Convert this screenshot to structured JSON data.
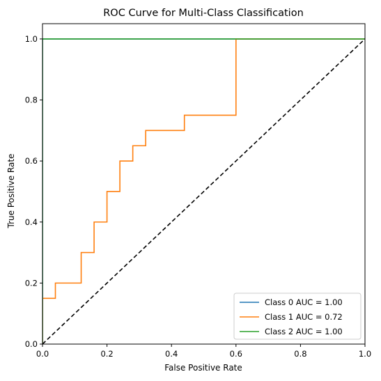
{
  "chart_data": {
    "type": "line",
    "title": "ROC Curve for Multi-Class Classification",
    "xlabel": "False Positive Rate",
    "ylabel": "True Positive Rate",
    "xlim": [
      0.0,
      1.0
    ],
    "ylim": [
      0.0,
      1.05
    ],
    "xticks": [
      "0.0",
      "0.2",
      "0.4",
      "0.6",
      "0.8",
      "1.0"
    ],
    "yticks": [
      "0.0",
      "0.2",
      "0.4",
      "0.6",
      "0.8",
      "1.0"
    ],
    "grid": false,
    "legend_position": "lower-right",
    "series": [
      {
        "name": "Class 0 AUC = 1.00",
        "color": "#1f77b4",
        "x": [
          0.0,
          0.0,
          1.0
        ],
        "y": [
          0.0,
          1.0,
          1.0
        ]
      },
      {
        "name": "Class 1 AUC = 0.72",
        "color": "#ff7f0e",
        "x": [
          0.0,
          0.0,
          0.04,
          0.04,
          0.12,
          0.12,
          0.16,
          0.16,
          0.2,
          0.2,
          0.24,
          0.24,
          0.28,
          0.28,
          0.32,
          0.32,
          0.44,
          0.44,
          0.6,
          0.6,
          1.0
        ],
        "y": [
          0.0,
          0.15,
          0.15,
          0.2,
          0.2,
          0.3,
          0.3,
          0.4,
          0.4,
          0.5,
          0.5,
          0.6,
          0.6,
          0.65,
          0.65,
          0.7,
          0.7,
          0.75,
          0.75,
          1.0,
          1.0
        ]
      },
      {
        "name": "Class 2 AUC = 1.00",
        "color": "#2ca02c",
        "x": [
          0.0,
          0.0,
          1.0
        ],
        "y": [
          0.0,
          1.0,
          1.0
        ]
      }
    ],
    "reference_line": {
      "style": "dashed",
      "color": "#000000",
      "x": [
        0.0,
        1.0
      ],
      "y": [
        0.0,
        1.0
      ]
    }
  }
}
